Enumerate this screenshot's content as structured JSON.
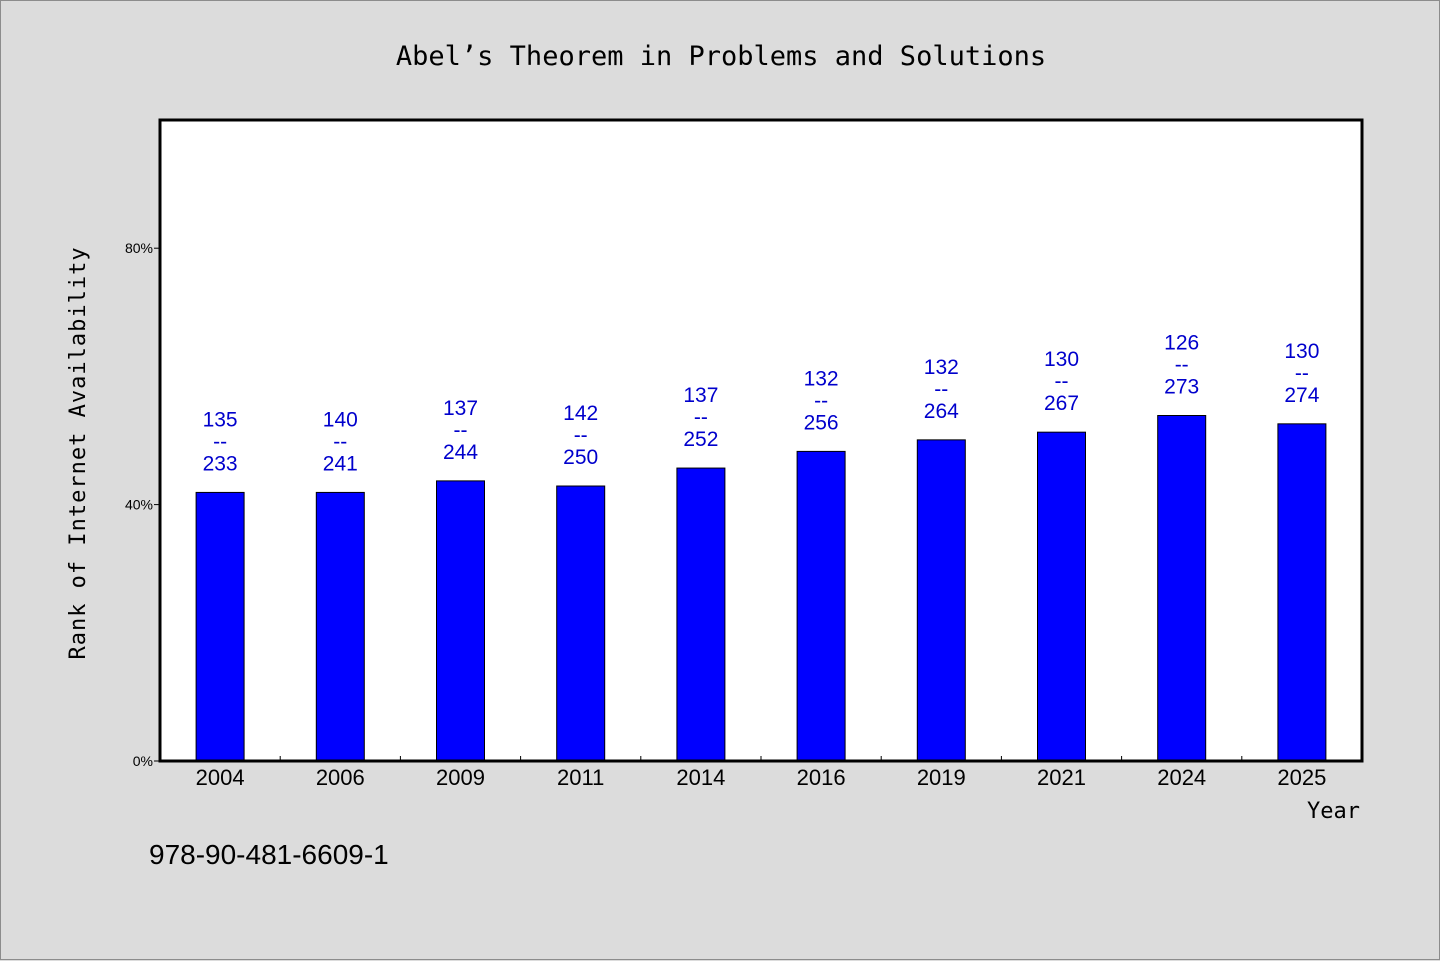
{
  "chart_data": {
    "type": "bar",
    "title": "Abel’s Theorem in Problems and Solutions",
    "xlabel": "Year",
    "ylabel": "Rank of Internet Availability",
    "categories": [
      "2004",
      "2006",
      "2009",
      "2011",
      "2014",
      "2016",
      "2019",
      "2021",
      "2024",
      "2025"
    ],
    "series": [
      {
        "values": [
          41.9,
          41.9,
          43.7,
          42.9,
          45.7,
          48.3,
          50.1,
          51.3,
          53.9,
          52.6
        ],
        "data_labels": [
          [
            "135",
            "--",
            "233"
          ],
          [
            "140",
            "--",
            "241"
          ],
          [
            "137",
            "--",
            "244"
          ],
          [
            "142",
            "--",
            "250"
          ],
          [
            "137",
            "--",
            "252"
          ],
          [
            "132",
            "--",
            "256"
          ],
          [
            "132",
            "--",
            "264"
          ],
          [
            "130",
            "--",
            "267"
          ],
          [
            "126",
            "--",
            "273"
          ],
          [
            "130",
            "--",
            "274"
          ]
        ]
      }
    ],
    "ylim": [
      0,
      100
    ],
    "yticks": [
      0,
      40,
      80
    ],
    "ytick_labels": [
      "0%",
      "40%",
      "80%"
    ],
    "grid": false,
    "colors": {
      "bar": "#0000ff",
      "data_label": "#0000cc",
      "plot_background": "#ffffff",
      "page_background": "#dcdcdc"
    }
  },
  "footer": {
    "isbn": "978-90-481-6609-1"
  }
}
